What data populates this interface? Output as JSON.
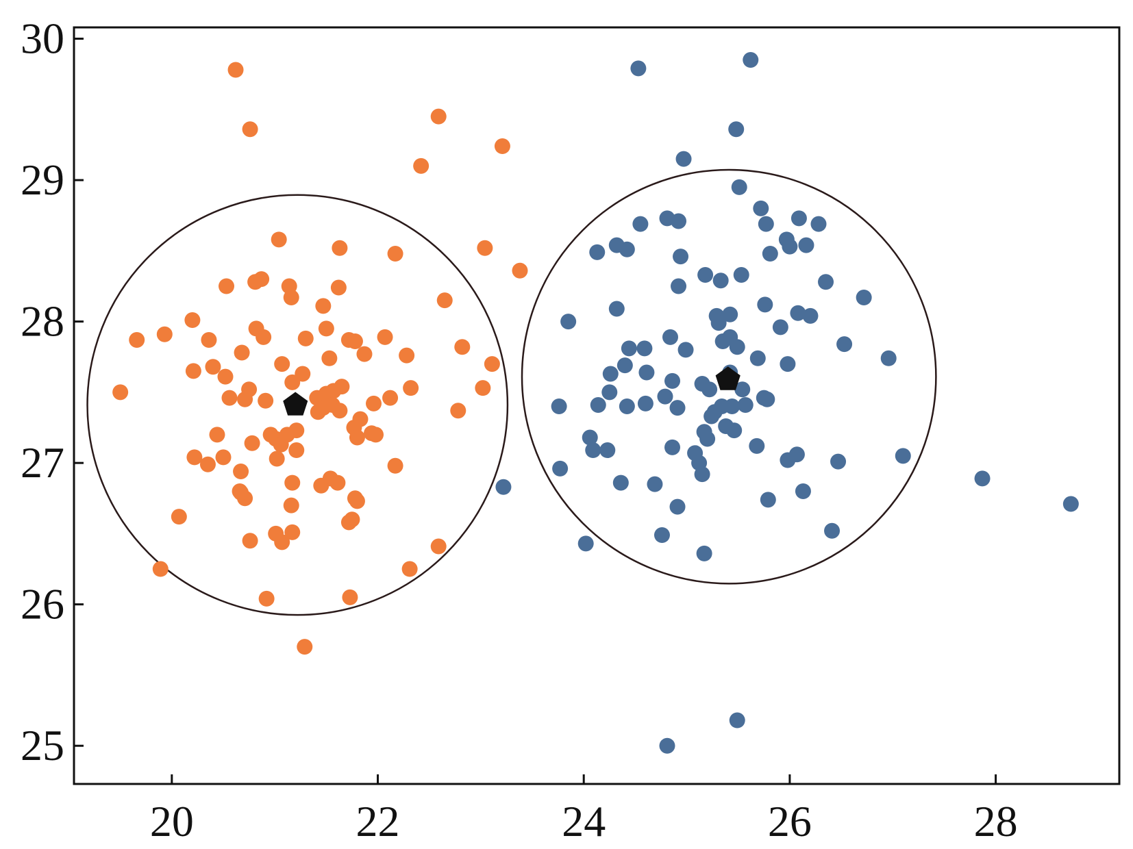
{
  "chart_data": {
    "type": "scatter",
    "title": "",
    "xlabel": "",
    "ylabel": "",
    "xlim": [
      19.05,
      29.2
    ],
    "ylim": [
      24.73,
      30.08
    ],
    "xticks": [
      20,
      22,
      24,
      26,
      28
    ],
    "yticks": [
      25,
      26,
      27,
      28,
      29,
      30
    ],
    "grid": false,
    "legend": "none",
    "colors": {
      "series_a": "#f07d3a",
      "series_b": "#4a6e98",
      "centroid": "#111111",
      "circle": "#2a1a1a"
    },
    "series": [
      {
        "color": "#f07d3a",
        "points": [
          [
            20.62,
            29.78
          ],
          [
            20.76,
            29.36
          ],
          [
            22.59,
            29.45
          ],
          [
            22.42,
            29.1
          ],
          [
            23.21,
            29.24
          ],
          [
            21.04,
            28.58
          ],
          [
            21.63,
            28.52
          ],
          [
            22.17,
            28.48
          ],
          [
            23.04,
            28.52
          ],
          [
            23.38,
            28.36
          ],
          [
            20.53,
            28.25
          ],
          [
            20.81,
            28.28
          ],
          [
            20.87,
            28.3
          ],
          [
            21.14,
            28.25
          ],
          [
            21.16,
            28.17
          ],
          [
            21.62,
            28.24
          ],
          [
            21.47,
            28.11
          ],
          [
            22.65,
            28.15
          ],
          [
            20.2,
            28.01
          ],
          [
            19.93,
            27.91
          ],
          [
            19.66,
            27.87
          ],
          [
            20.36,
            27.87
          ],
          [
            20.82,
            27.95
          ],
          [
            20.89,
            27.89
          ],
          [
            21.3,
            27.88
          ],
          [
            21.5,
            27.95
          ],
          [
            21.72,
            27.87
          ],
          [
            21.78,
            27.86
          ],
          [
            22.07,
            27.89
          ],
          [
            20.68,
            27.78
          ],
          [
            21.07,
            27.7
          ],
          [
            21.53,
            27.74
          ],
          [
            21.87,
            27.77
          ],
          [
            22.28,
            27.76
          ],
          [
            22.82,
            27.82
          ],
          [
            23.11,
            27.7
          ],
          [
            20.21,
            27.65
          ],
          [
            20.4,
            27.68
          ],
          [
            20.52,
            27.61
          ],
          [
            21.27,
            27.63
          ],
          [
            21.17,
            27.57
          ],
          [
            20.75,
            27.52
          ],
          [
            21.5,
            27.49
          ],
          [
            21.65,
            27.54
          ],
          [
            21.57,
            27.51
          ],
          [
            22.32,
            27.53
          ],
          [
            23.02,
            27.53
          ],
          [
            19.5,
            27.5
          ],
          [
            20.56,
            27.46
          ],
          [
            20.71,
            27.45
          ],
          [
            20.91,
            27.44
          ],
          [
            21.41,
            27.46
          ],
          [
            21.47,
            27.39
          ],
          [
            21.56,
            27.41
          ],
          [
            21.63,
            27.37
          ],
          [
            21.42,
            27.36
          ],
          [
            21.96,
            27.42
          ],
          [
            22.12,
            27.46
          ],
          [
            22.78,
            27.37
          ],
          [
            21.77,
            27.25
          ],
          [
            21.83,
            27.31
          ],
          [
            21.8,
            27.18
          ],
          [
            21.94,
            27.21
          ],
          [
            21.98,
            27.2
          ],
          [
            20.44,
            27.2
          ],
          [
            20.96,
            27.2
          ],
          [
            21.01,
            27.17
          ],
          [
            21.06,
            27.13
          ],
          [
            21.21,
            27.23
          ],
          [
            21.12,
            27.2
          ],
          [
            20.78,
            27.14
          ],
          [
            21.21,
            27.09
          ],
          [
            21.02,
            27.03
          ],
          [
            20.22,
            27.04
          ],
          [
            20.35,
            26.99
          ],
          [
            20.5,
            27.04
          ],
          [
            22.17,
            26.98
          ],
          [
            20.67,
            26.94
          ],
          [
            21.17,
            26.86
          ],
          [
            21.45,
            26.84
          ],
          [
            21.54,
            26.89
          ],
          [
            21.61,
            26.86
          ],
          [
            20.66,
            26.8
          ],
          [
            20.71,
            26.75
          ],
          [
            20.67,
            26.79
          ],
          [
            21.78,
            26.75
          ],
          [
            21.8,
            26.73
          ],
          [
            21.16,
            26.7
          ],
          [
            20.07,
            26.62
          ],
          [
            21.75,
            26.6
          ],
          [
            21.72,
            26.58
          ],
          [
            20.76,
            26.45
          ],
          [
            21.01,
            26.5
          ],
          [
            21.07,
            26.44
          ],
          [
            21.17,
            26.51
          ],
          [
            22.59,
            26.41
          ],
          [
            19.89,
            26.25
          ],
          [
            22.31,
            26.25
          ],
          [
            20.92,
            26.04
          ],
          [
            21.73,
            26.05
          ],
          [
            21.29,
            25.7
          ]
        ]
      },
      {
        "color": "#4a6e98",
        "points": [
          [
            24.53,
            29.79
          ],
          [
            25.62,
            29.85
          ],
          [
            25.48,
            29.36
          ],
          [
            24.97,
            29.15
          ],
          [
            25.51,
            28.95
          ],
          [
            25.72,
            28.8
          ],
          [
            24.55,
            28.69
          ],
          [
            24.81,
            28.73
          ],
          [
            24.92,
            28.71
          ],
          [
            25.77,
            28.69
          ],
          [
            26.09,
            28.73
          ],
          [
            26.28,
            28.69
          ],
          [
            24.13,
            28.49
          ],
          [
            24.32,
            28.54
          ],
          [
            24.42,
            28.51
          ],
          [
            24.94,
            28.46
          ],
          [
            25.81,
            28.48
          ],
          [
            25.97,
            28.58
          ],
          [
            26.0,
            28.53
          ],
          [
            26.16,
            28.54
          ],
          [
            25.18,
            28.33
          ],
          [
            25.33,
            28.29
          ],
          [
            25.53,
            28.33
          ],
          [
            24.92,
            28.25
          ],
          [
            26.35,
            28.28
          ],
          [
            26.72,
            28.17
          ],
          [
            25.76,
            28.12
          ],
          [
            24.32,
            28.09
          ],
          [
            23.85,
            28.0
          ],
          [
            25.29,
            28.04
          ],
          [
            25.31,
            27.99
          ],
          [
            25.42,
            28.05
          ],
          [
            26.08,
            28.06
          ],
          [
            26.2,
            28.04
          ],
          [
            25.91,
            27.96
          ],
          [
            24.84,
            27.89
          ],
          [
            25.35,
            27.86
          ],
          [
            25.42,
            27.89
          ],
          [
            25.49,
            27.82
          ],
          [
            24.44,
            27.81
          ],
          [
            24.59,
            27.81
          ],
          [
            24.99,
            27.8
          ],
          [
            25.69,
            27.74
          ],
          [
            25.98,
            27.7
          ],
          [
            26.53,
            27.84
          ],
          [
            24.4,
            27.69
          ],
          [
            24.26,
            27.63
          ],
          [
            24.61,
            27.64
          ],
          [
            24.86,
            27.58
          ],
          [
            25.15,
            27.56
          ],
          [
            25.22,
            27.52
          ],
          [
            25.42,
            27.64
          ],
          [
            25.54,
            27.52
          ],
          [
            26.96,
            27.74
          ],
          [
            24.25,
            27.5
          ],
          [
            24.14,
            27.41
          ],
          [
            24.42,
            27.4
          ],
          [
            24.6,
            27.42
          ],
          [
            24.79,
            27.47
          ],
          [
            24.91,
            27.39
          ],
          [
            25.27,
            27.36
          ],
          [
            25.24,
            27.33
          ],
          [
            25.34,
            27.4
          ],
          [
            25.44,
            27.4
          ],
          [
            25.57,
            27.41
          ],
          [
            25.75,
            27.46
          ],
          [
            25.78,
            27.45
          ],
          [
            23.76,
            27.4
          ],
          [
            25.17,
            27.22
          ],
          [
            25.2,
            27.17
          ],
          [
            25.38,
            27.26
          ],
          [
            25.46,
            27.23
          ],
          [
            24.06,
            27.18
          ],
          [
            24.09,
            27.09
          ],
          [
            24.23,
            27.09
          ],
          [
            24.86,
            27.11
          ],
          [
            25.08,
            27.07
          ],
          [
            25.12,
            27.0
          ],
          [
            25.68,
            27.12
          ],
          [
            25.98,
            27.02
          ],
          [
            26.07,
            27.06
          ],
          [
            26.47,
            27.01
          ],
          [
            23.77,
            26.96
          ],
          [
            25.15,
            26.92
          ],
          [
            24.36,
            26.86
          ],
          [
            24.69,
            26.85
          ],
          [
            26.13,
            26.8
          ],
          [
            25.79,
            26.74
          ],
          [
            24.91,
            26.69
          ],
          [
            23.22,
            26.83
          ],
          [
            27.1,
            27.05
          ],
          [
            27.87,
            26.89
          ],
          [
            28.73,
            26.71
          ],
          [
            24.76,
            26.49
          ],
          [
            26.41,
            26.52
          ],
          [
            24.02,
            26.43
          ],
          [
            25.17,
            26.36
          ],
          [
            25.49,
            25.18
          ],
          [
            24.81,
            25.0
          ]
        ]
      }
    ],
    "centroids": [
      [
        21.2,
        27.41
      ],
      [
        25.4,
        27.59
      ]
    ],
    "circles": [
      {
        "center": [
          21.22,
          27.41
        ],
        "radius_x": 2.04
      },
      {
        "center": [
          25.41,
          27.61
        ],
        "radius_x": 2.01
      }
    ]
  }
}
